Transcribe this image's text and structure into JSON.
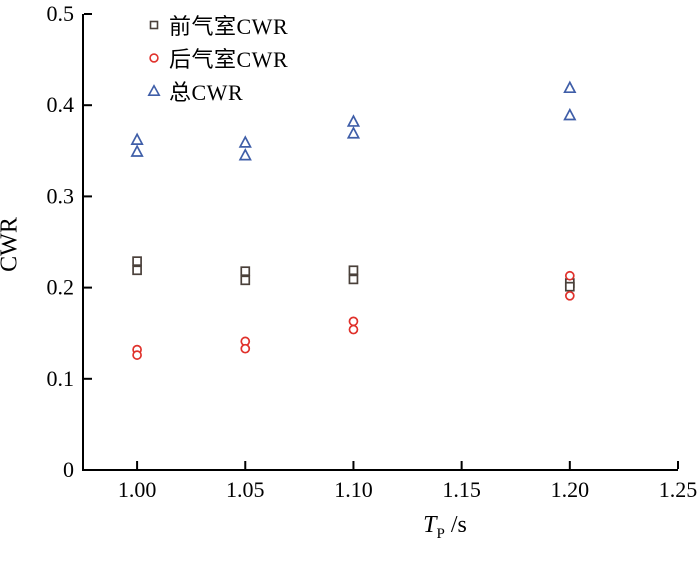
{
  "figure": {
    "background": "#ffffff",
    "axis_color": "#000000"
  },
  "chart_data": {
    "type": "scatter",
    "title": "",
    "ylabel": "CWR",
    "xlabel": {
      "var": "T",
      "sub": "P",
      "unit": " /s"
    },
    "xlim": [
      0.975,
      1.25
    ],
    "ylim": [
      0,
      0.5
    ],
    "x_ticks": [
      {
        "value": 1.0,
        "label": "1.00"
      },
      {
        "value": 1.05,
        "label": "1.05"
      },
      {
        "value": 1.1,
        "label": "1.10"
      },
      {
        "value": 1.15,
        "label": "1.15"
      },
      {
        "value": 1.2,
        "label": "1.20"
      },
      {
        "value": 1.25,
        "label": "1.25"
      }
    ],
    "y_ticks": [
      {
        "value": 0.0,
        "label": "0"
      },
      {
        "value": 0.1,
        "label": "0.1"
      },
      {
        "value": 0.2,
        "label": "0.2"
      },
      {
        "value": 0.3,
        "label": "0.3"
      },
      {
        "value": 0.4,
        "label": "0.4"
      },
      {
        "value": 0.5,
        "label": "0.5"
      }
    ],
    "grid": false,
    "legend_position": "top-left-inside",
    "series": [
      {
        "name": "前气室CWR",
        "marker": "square",
        "color": "#4a403a",
        "points": [
          [
            1.0,
            0.229
          ],
          [
            1.0,
            0.219
          ],
          [
            1.05,
            0.218
          ],
          [
            1.05,
            0.208
          ],
          [
            1.1,
            0.219
          ],
          [
            1.1,
            0.209
          ],
          [
            1.2,
            0.205
          ],
          [
            1.2,
            0.201
          ]
        ]
      },
      {
        "name": "后气室CWR",
        "marker": "circle",
        "color": "#e0312b",
        "points": [
          [
            1.0,
            0.132
          ],
          [
            1.0,
            0.126
          ],
          [
            1.05,
            0.141
          ],
          [
            1.05,
            0.133
          ],
          [
            1.1,
            0.163
          ],
          [
            1.1,
            0.154
          ],
          [
            1.2,
            0.213
          ],
          [
            1.2,
            0.191
          ]
        ]
      },
      {
        "name": "总CWR",
        "marker": "triangle",
        "color": "#3f5ea8",
        "points": [
          [
            1.0,
            0.362
          ],
          [
            1.0,
            0.349
          ],
          [
            1.05,
            0.359
          ],
          [
            1.05,
            0.345
          ],
          [
            1.1,
            0.382
          ],
          [
            1.1,
            0.369
          ],
          [
            1.2,
            0.419
          ],
          [
            1.2,
            0.389
          ]
        ]
      }
    ]
  }
}
